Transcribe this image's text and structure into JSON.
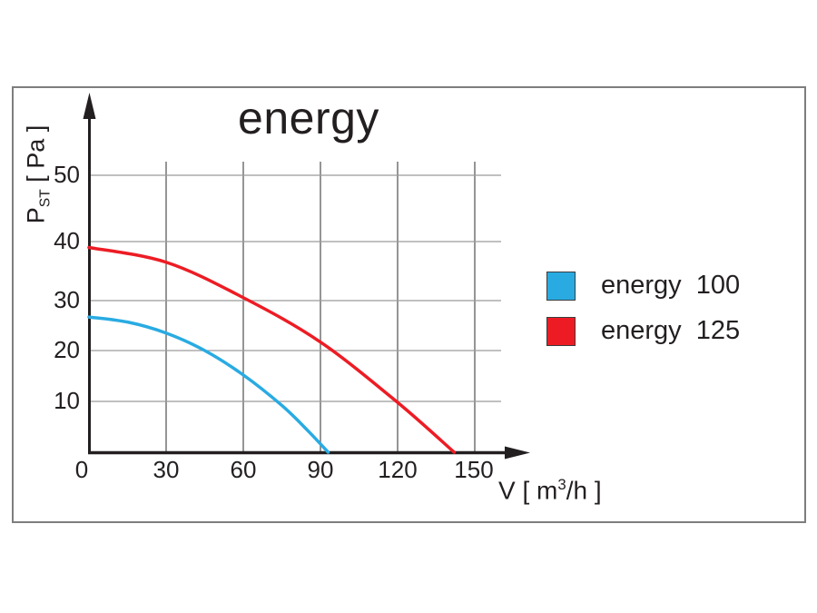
{
  "title": "energy",
  "y_axis": {
    "symbol": "P",
    "subscript": "ST",
    "unit": " [ Pa ]"
  },
  "x_axis": {
    "prefix": "V [ m",
    "superscript": "3",
    "suffix": "/h ]"
  },
  "legend": {
    "items": [
      {
        "label": "energy  100",
        "color": "#29ABE2"
      },
      {
        "label": "energy  125",
        "color": "#ED1C24"
      }
    ]
  },
  "chart_data": {
    "type": "line",
    "title": "energy",
    "xlabel": "V [ m3/h ]",
    "ylabel": "PST [ Pa ]",
    "x_ticks": [
      0,
      30,
      60,
      90,
      120,
      150
    ],
    "y_ticks": [
      0,
      10,
      20,
      30,
      40,
      50
    ],
    "xlim": [
      0,
      170
    ],
    "ylim": [
      0,
      57
    ],
    "grid": true,
    "legend_position": "right-outside",
    "series": [
      {
        "id": "energy-100",
        "name": "energy 100",
        "color": "#29ABE2",
        "points": [
          [
            0,
            26.7
          ],
          [
            15,
            25.7
          ],
          [
            30,
            23.5
          ],
          [
            45,
            20
          ],
          [
            60,
            15.2
          ],
          [
            75,
            9.2
          ],
          [
            85,
            4.3
          ],
          [
            93,
            0
          ]
        ]
      },
      {
        "id": "energy-125",
        "name": "energy 125",
        "color": "#ED1C24",
        "points": [
          [
            0,
            39
          ],
          [
            30,
            36.5
          ],
          [
            60,
            30.5
          ],
          [
            90,
            21.7
          ],
          [
            120,
            9.8
          ],
          [
            142,
            0
          ]
        ]
      }
    ]
  }
}
